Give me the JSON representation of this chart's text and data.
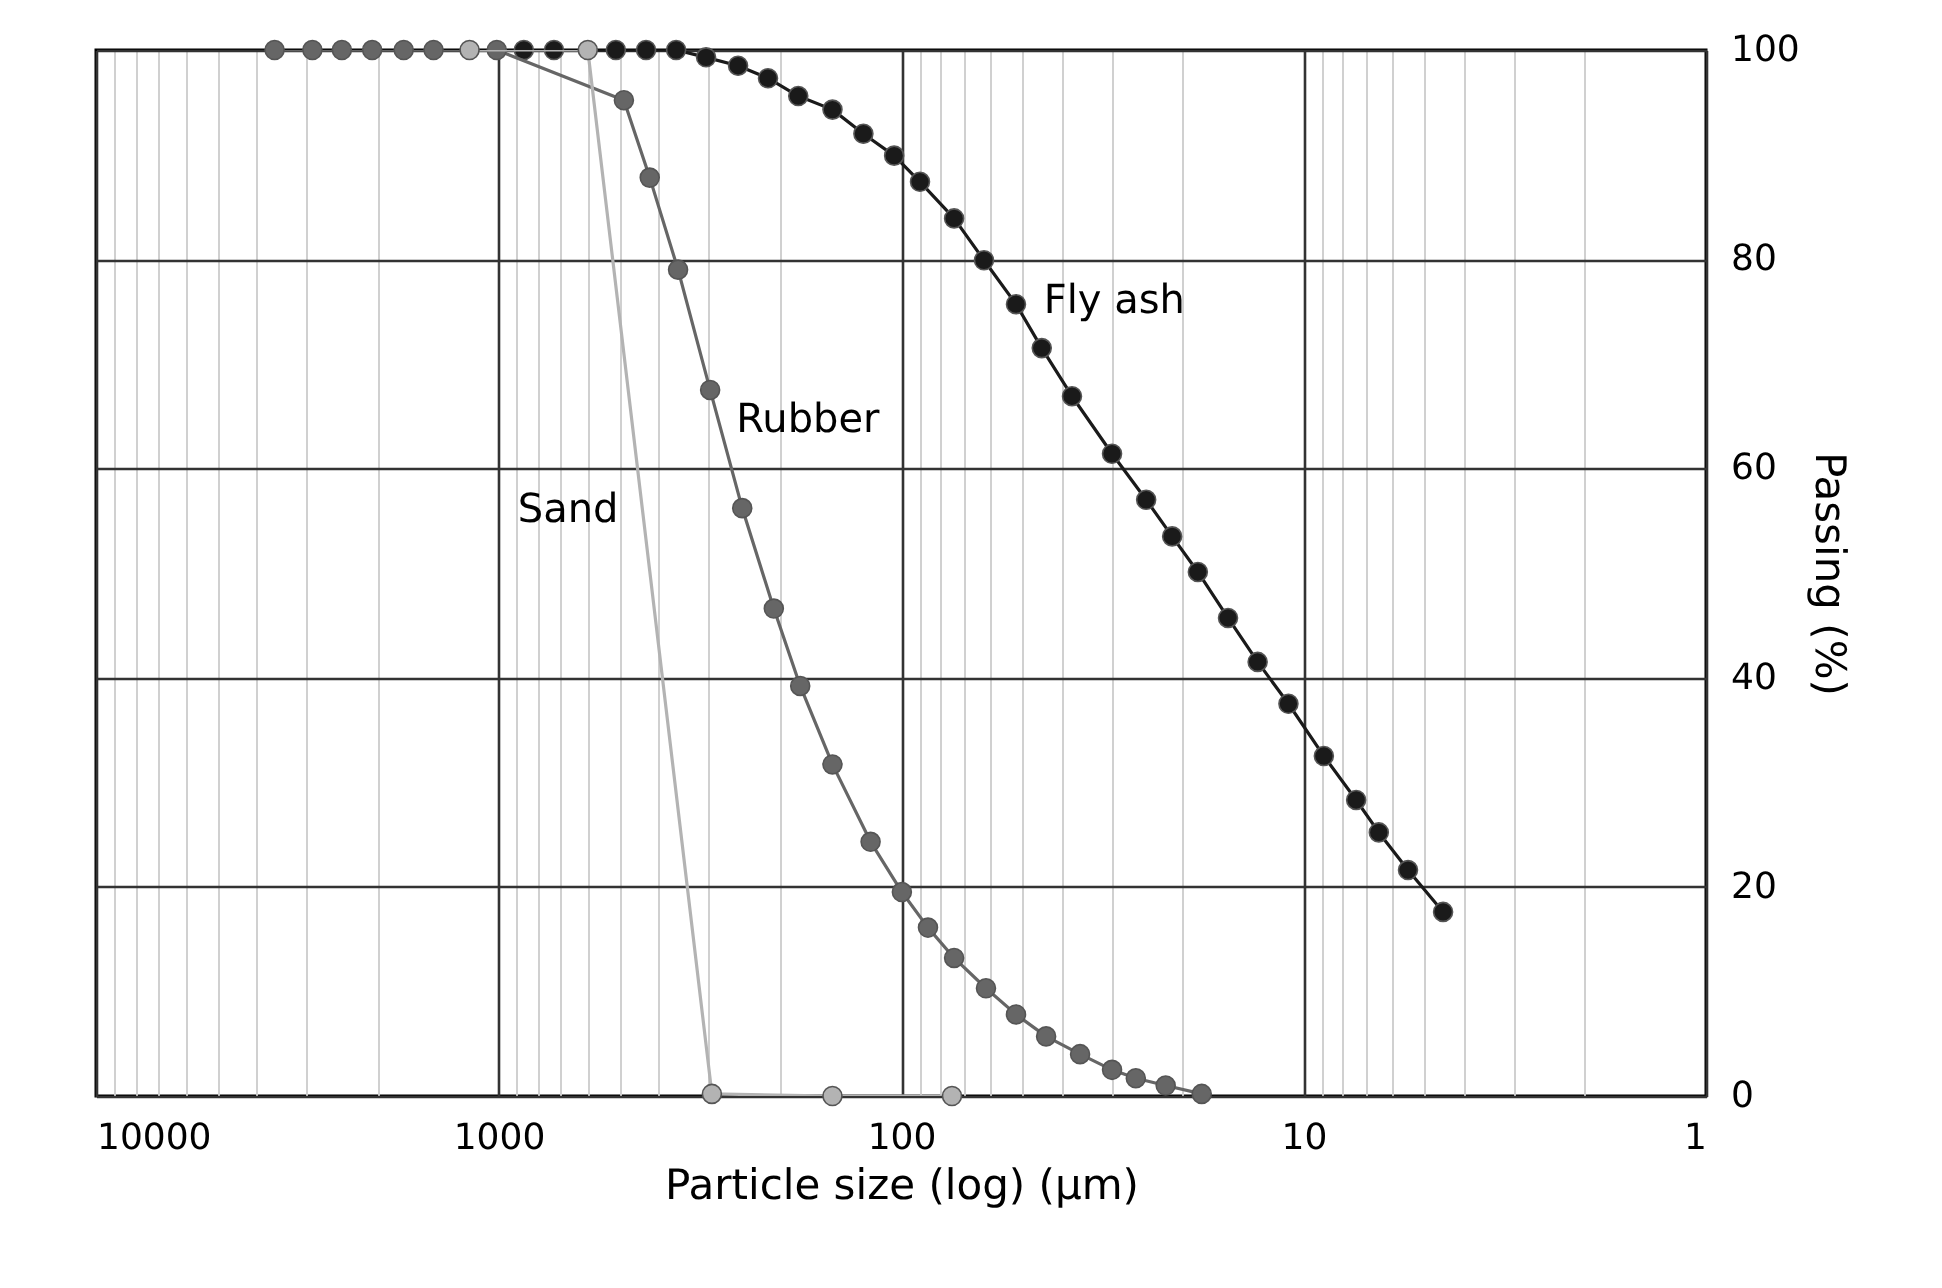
{
  "chart_data": {
    "type": "line",
    "xlabel": "Particle size (log) (µm)",
    "ylabel": "Passing (%)",
    "log": "x",
    "xlim": [
      10000,
      1
    ],
    "ylim": [
      0,
      100
    ],
    "xticks": [
      10000,
      {
        "value": 9000,
        "label": null
      },
      {
        "value": 8000,
        "label": null
      },
      {
        "value": 7000,
        "label": null
      },
      {
        "value": 6000,
        "label": null
      },
      {
        "value": 5000,
        "label": null
      },
      {
        "value": 4000,
        "label": null
      },
      {
        "value": 3000,
        "label": null
      },
      {
        "value": 2000,
        "label": null
      },
      1000,
      {
        "value": 900,
        "label": null
      },
      {
        "value": 800,
        "label": null
      },
      {
        "value": 700,
        "label": null
      },
      {
        "value": 600,
        "label": null
      },
      {
        "value": 500,
        "label": null
      },
      {
        "value": 400,
        "label": null
      },
      {
        "value": 300,
        "label": null
      },
      {
        "value": 200,
        "label": null
      },
      100,
      {
        "value": 90,
        "label": null
      },
      {
        "value": 80,
        "label": null
      },
      {
        "value": 70,
        "label": null
      },
      {
        "value": 60,
        "label": null
      },
      {
        "value": 50,
        "label": null
      },
      {
        "value": 40,
        "label": null
      },
      {
        "value": 30,
        "label": null
      },
      {
        "value": 20,
        "label": null
      },
      10,
      {
        "value": 9,
        "label": null
      },
      {
        "value": 8,
        "label": null
      },
      {
        "value": 7,
        "label": null
      },
      {
        "value": 6,
        "label": null
      },
      {
        "value": 5,
        "label": null
      },
      {
        "value": 4,
        "label": null
      },
      {
        "value": 3,
        "label": null
      },
      {
        "value": 2,
        "label": null
      },
      1
    ],
    "yticks": [
      0,
      20,
      40,
      60,
      80,
      100
    ],
    "grid": true,
    "marker": "circle",
    "line_style": "solid",
    "series": [
      {
        "name": "Fly ash",
        "color": "#1a1a1a",
        "x": [
          865,
          728,
          511,
          430,
          362,
          305,
          254,
          214,
          180,
          148,
          124,
          104,
          89.7,
          73.8,
          62.2,
          51.8,
          44.7,
          37.6,
          29.9,
          24.6,
          21.2,
          18.3,
          15.4,
          13.0,
          10.9,
          8.9,
          7.4,
          6.5,
          5.5,
          4.5
        ],
        "values": [
          100,
          100,
          100,
          100,
          100,
          99.3,
          98.5,
          97.3,
          95.6,
          94.3,
          92.0,
          89.9,
          87.4,
          83.9,
          79.9,
          75.7,
          71.5,
          66.9,
          61.4,
          57.0,
          53.5,
          50.1,
          45.7,
          41.5,
          37.5,
          32.5,
          28.3,
          25.2,
          21.6,
          17.6
        ]
      },
      {
        "name": "Rubber",
        "color": "#666666",
        "x": [
          3600,
          2900,
          2450,
          2060,
          1720,
          1450,
          1010,
          600,
          488,
          421,
          358,
          298,
          248,
          207,
          178,
          148,
          119,
          99.5,
          85.7,
          73.8,
          61.5,
          51.8,
          43.6,
          35.9,
          29.9,
          26.1,
          22.0,
          17.9
        ],
        "values": [
          100,
          100,
          100,
          100,
          100,
          100,
          100,
          null,
          95.2,
          87.8,
          79.0,
          67.5,
          56.2,
          46.6,
          39.2,
          31.7,
          24.3,
          19.5,
          16.1,
          13.2,
          10.3,
          7.8,
          5.7,
          4.0,
          2.5,
          1.7,
          1.0,
          0.2
        ]
      },
      {
        "name": "Sand",
        "color": "#b3b3b3",
        "x": [
          1180,
          600,
          295,
          148,
          74.7
        ],
        "values": [
          100,
          100,
          0.2,
          0,
          0
        ]
      }
    ]
  }
}
